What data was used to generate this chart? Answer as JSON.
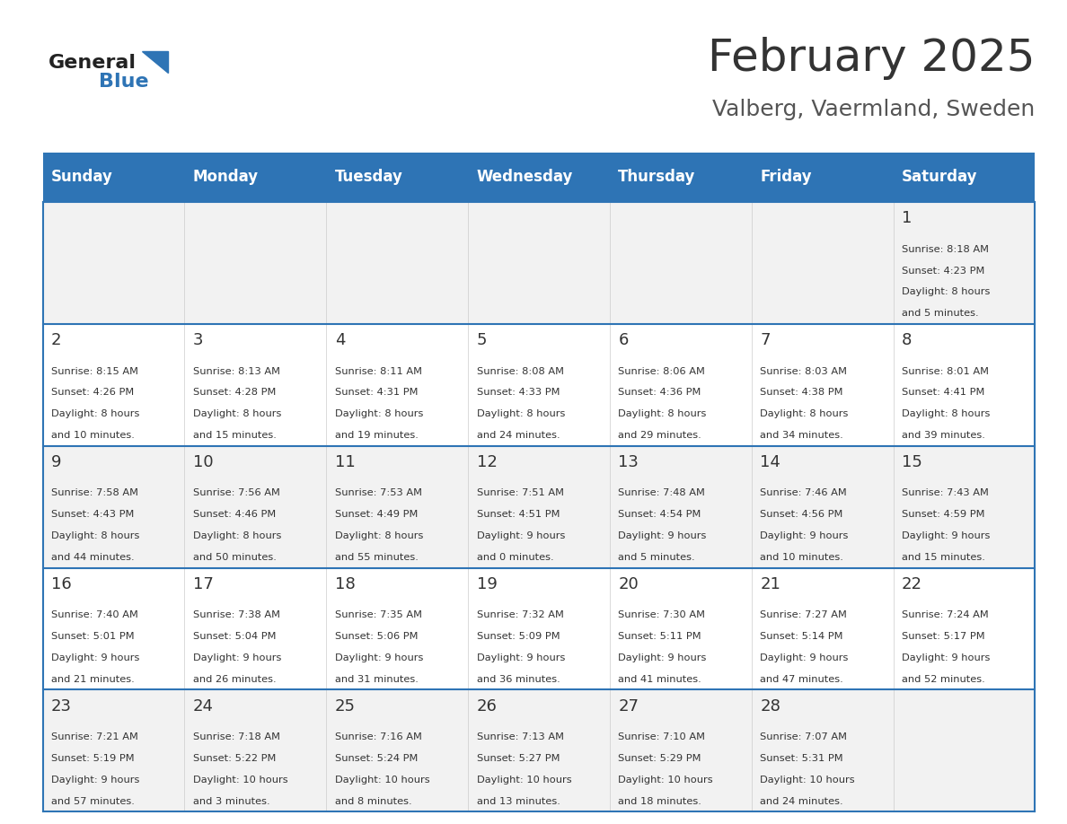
{
  "title": "February 2025",
  "subtitle": "Valberg, Vaermland, Sweden",
  "header_bg": "#2E74B5",
  "header_text_color": "#FFFFFF",
  "day_names": [
    "Sunday",
    "Monday",
    "Tuesday",
    "Wednesday",
    "Thursday",
    "Friday",
    "Saturday"
  ],
  "row_bg_even": "#F2F2F2",
  "row_bg_odd": "#FFFFFF",
  "line_color": "#2E74B5",
  "number_color": "#333333",
  "text_color": "#333333",
  "title_color": "#333333",
  "subtitle_color": "#555555",
  "logo_general_color": "#222222",
  "logo_blue_color": "#2E74B5",
  "weeks": [
    {
      "days": [
        {
          "date": null,
          "info": null
        },
        {
          "date": null,
          "info": null
        },
        {
          "date": null,
          "info": null
        },
        {
          "date": null,
          "info": null
        },
        {
          "date": null,
          "info": null
        },
        {
          "date": null,
          "info": null
        },
        {
          "date": 1,
          "info": "Sunrise: 8:18 AM\nSunset: 4:23 PM\nDaylight: 8 hours\nand 5 minutes."
        }
      ]
    },
    {
      "days": [
        {
          "date": 2,
          "info": "Sunrise: 8:15 AM\nSunset: 4:26 PM\nDaylight: 8 hours\nand 10 minutes."
        },
        {
          "date": 3,
          "info": "Sunrise: 8:13 AM\nSunset: 4:28 PM\nDaylight: 8 hours\nand 15 minutes."
        },
        {
          "date": 4,
          "info": "Sunrise: 8:11 AM\nSunset: 4:31 PM\nDaylight: 8 hours\nand 19 minutes."
        },
        {
          "date": 5,
          "info": "Sunrise: 8:08 AM\nSunset: 4:33 PM\nDaylight: 8 hours\nand 24 minutes."
        },
        {
          "date": 6,
          "info": "Sunrise: 8:06 AM\nSunset: 4:36 PM\nDaylight: 8 hours\nand 29 minutes."
        },
        {
          "date": 7,
          "info": "Sunrise: 8:03 AM\nSunset: 4:38 PM\nDaylight: 8 hours\nand 34 minutes."
        },
        {
          "date": 8,
          "info": "Sunrise: 8:01 AM\nSunset: 4:41 PM\nDaylight: 8 hours\nand 39 minutes."
        }
      ]
    },
    {
      "days": [
        {
          "date": 9,
          "info": "Sunrise: 7:58 AM\nSunset: 4:43 PM\nDaylight: 8 hours\nand 44 minutes."
        },
        {
          "date": 10,
          "info": "Sunrise: 7:56 AM\nSunset: 4:46 PM\nDaylight: 8 hours\nand 50 minutes."
        },
        {
          "date": 11,
          "info": "Sunrise: 7:53 AM\nSunset: 4:49 PM\nDaylight: 8 hours\nand 55 minutes."
        },
        {
          "date": 12,
          "info": "Sunrise: 7:51 AM\nSunset: 4:51 PM\nDaylight: 9 hours\nand 0 minutes."
        },
        {
          "date": 13,
          "info": "Sunrise: 7:48 AM\nSunset: 4:54 PM\nDaylight: 9 hours\nand 5 minutes."
        },
        {
          "date": 14,
          "info": "Sunrise: 7:46 AM\nSunset: 4:56 PM\nDaylight: 9 hours\nand 10 minutes."
        },
        {
          "date": 15,
          "info": "Sunrise: 7:43 AM\nSunset: 4:59 PM\nDaylight: 9 hours\nand 15 minutes."
        }
      ]
    },
    {
      "days": [
        {
          "date": 16,
          "info": "Sunrise: 7:40 AM\nSunset: 5:01 PM\nDaylight: 9 hours\nand 21 minutes."
        },
        {
          "date": 17,
          "info": "Sunrise: 7:38 AM\nSunset: 5:04 PM\nDaylight: 9 hours\nand 26 minutes."
        },
        {
          "date": 18,
          "info": "Sunrise: 7:35 AM\nSunset: 5:06 PM\nDaylight: 9 hours\nand 31 minutes."
        },
        {
          "date": 19,
          "info": "Sunrise: 7:32 AM\nSunset: 5:09 PM\nDaylight: 9 hours\nand 36 minutes."
        },
        {
          "date": 20,
          "info": "Sunrise: 7:30 AM\nSunset: 5:11 PM\nDaylight: 9 hours\nand 41 minutes."
        },
        {
          "date": 21,
          "info": "Sunrise: 7:27 AM\nSunset: 5:14 PM\nDaylight: 9 hours\nand 47 minutes."
        },
        {
          "date": 22,
          "info": "Sunrise: 7:24 AM\nSunset: 5:17 PM\nDaylight: 9 hours\nand 52 minutes."
        }
      ]
    },
    {
      "days": [
        {
          "date": 23,
          "info": "Sunrise: 7:21 AM\nSunset: 5:19 PM\nDaylight: 9 hours\nand 57 minutes."
        },
        {
          "date": 24,
          "info": "Sunrise: 7:18 AM\nSunset: 5:22 PM\nDaylight: 10 hours\nand 3 minutes."
        },
        {
          "date": 25,
          "info": "Sunrise: 7:16 AM\nSunset: 5:24 PM\nDaylight: 10 hours\nand 8 minutes."
        },
        {
          "date": 26,
          "info": "Sunrise: 7:13 AM\nSunset: 5:27 PM\nDaylight: 10 hours\nand 13 minutes."
        },
        {
          "date": 27,
          "info": "Sunrise: 7:10 AM\nSunset: 5:29 PM\nDaylight: 10 hours\nand 18 minutes."
        },
        {
          "date": 28,
          "info": "Sunrise: 7:07 AM\nSunset: 5:31 PM\nDaylight: 10 hours\nand 24 minutes."
        },
        {
          "date": null,
          "info": null
        }
      ]
    }
  ]
}
